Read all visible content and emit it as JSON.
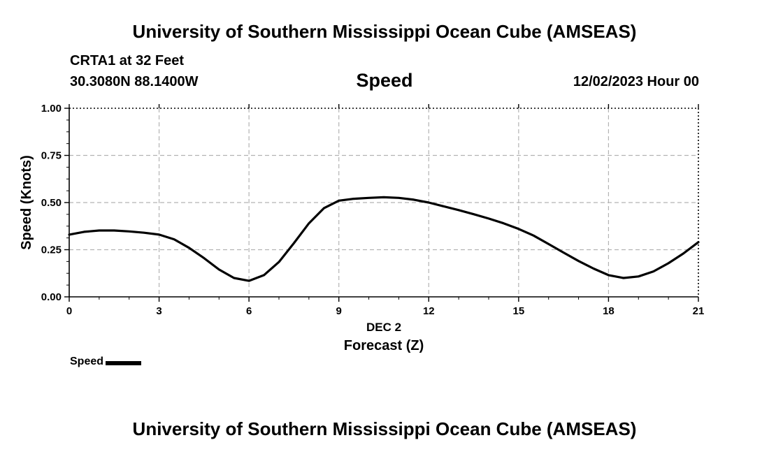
{
  "header": {
    "title": "University of Southern Mississippi Ocean Cube (AMSEAS)",
    "station": "CRTA1 at 32 Feet",
    "coords": "30.3080N  88.1400W",
    "timestamp": "12/02/2023 Hour 00"
  },
  "footer": {
    "title": "University of Southern Mississippi Ocean Cube (AMSEAS)"
  },
  "legend": {
    "label": "Speed",
    "color": "#000000"
  },
  "chart_data": {
    "type": "line",
    "title": "Speed",
    "xlabel": "Forecast (Z)",
    "x_date_label": "DEC 2",
    "ylabel": "Speed (Knots)",
    "xlim": [
      0,
      21
    ],
    "ylim": [
      0,
      1
    ],
    "x_ticks": [
      0,
      3,
      6,
      9,
      12,
      15,
      18,
      21
    ],
    "x_tick_labels": [
      "0",
      "3",
      "6",
      "9",
      "12",
      "15",
      "18",
      "21"
    ],
    "y_ticks": [
      0,
      0.25,
      0.5,
      0.75,
      1.0
    ],
    "y_tick_labels": [
      "0.00",
      "0.25",
      "0.50",
      "0.75",
      "1.00"
    ],
    "grid": true,
    "legend_position": "bottom-left",
    "series": [
      {
        "name": "Speed",
        "color": "#000000",
        "x": [
          0,
          0.5,
          1,
          1.5,
          2,
          2.5,
          3,
          3.5,
          4,
          4.5,
          5,
          5.5,
          6,
          6.5,
          7,
          7.5,
          8,
          8.5,
          9,
          9.5,
          10,
          10.5,
          11,
          11.5,
          12,
          12.5,
          13,
          13.5,
          14,
          14.5,
          15,
          15.5,
          16,
          16.5,
          17,
          17.5,
          18,
          18.5,
          19,
          19.5,
          20,
          20.5,
          21
        ],
        "y": [
          0.33,
          0.345,
          0.352,
          0.352,
          0.347,
          0.34,
          0.33,
          0.305,
          0.26,
          0.205,
          0.145,
          0.1,
          0.085,
          0.115,
          0.185,
          0.285,
          0.39,
          0.47,
          0.51,
          0.52,
          0.525,
          0.528,
          0.525,
          0.515,
          0.5,
          0.48,
          0.46,
          0.438,
          0.415,
          0.39,
          0.36,
          0.325,
          0.28,
          0.235,
          0.19,
          0.15,
          0.115,
          0.1,
          0.108,
          0.135,
          0.178,
          0.23,
          0.29
        ]
      }
    ]
  }
}
